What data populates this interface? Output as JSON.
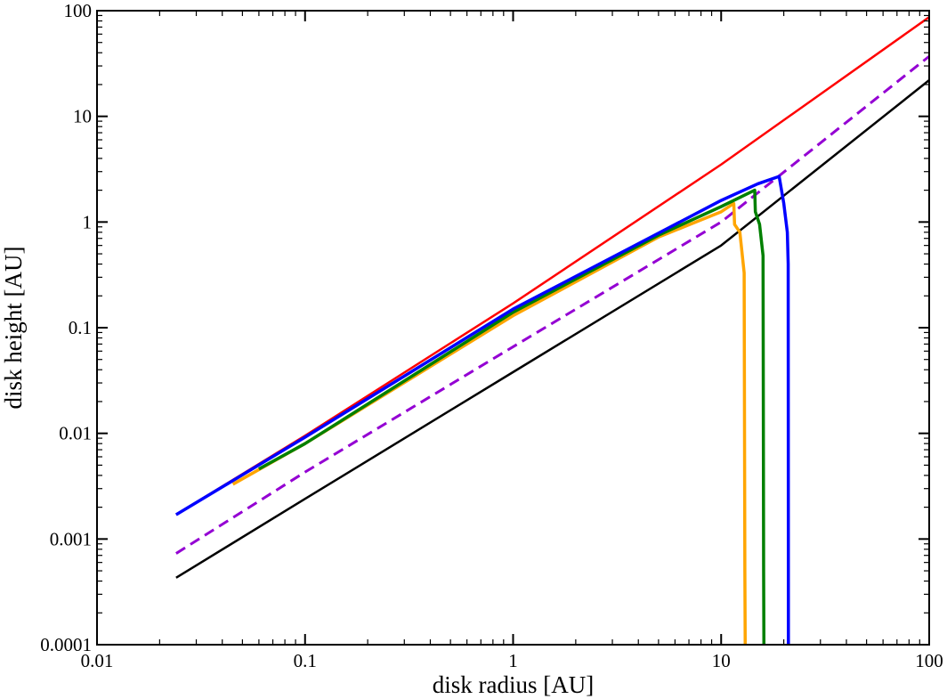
{
  "chart_data": {
    "type": "line",
    "xlabel": "disk radius [AU]",
    "ylabel": "disk height [AU]",
    "xscale": "log",
    "yscale": "log",
    "xlim": [
      0.01,
      100
    ],
    "ylim": [
      0.0001,
      100
    ],
    "x_tick_values": [
      0.01,
      0.1,
      1,
      10,
      100
    ],
    "x_tick_labels": [
      "0.01",
      "0.1",
      "1",
      "10",
      "100"
    ],
    "y_tick_values": [
      0.0001,
      0.001,
      0.01,
      0.1,
      1,
      10,
      100
    ],
    "y_tick_labels": [
      "0.0001",
      "0.001",
      "0.01",
      "0.1",
      "1",
      "10",
      "100"
    ],
    "grid": false,
    "legend": "none",
    "series": [
      {
        "color": "#ff0000",
        "style": "solid",
        "x": [
          0.024,
          0.1,
          1,
          10,
          100
        ],
        "y": [
          0.0017,
          0.0095,
          0.17,
          3.5,
          87
        ]
      },
      {
        "color": "#9400d3",
        "style": "dashed",
        "x": [
          0.024,
          0.1,
          1,
          10,
          100
        ],
        "y": [
          0.00073,
          0.0043,
          0.066,
          1.0,
          37
        ]
      },
      {
        "color": "#000000",
        "style": "solid",
        "x": [
          0.024,
          0.1,
          1,
          10,
          100
        ],
        "y": [
          0.00043,
          0.0024,
          0.038,
          0.6,
          22
        ]
      },
      {
        "color": "#ffa500",
        "style": "solid",
        "x": [
          0.045,
          0.1,
          1,
          5,
          10,
          11.5,
          11.6,
          12.3,
          12.9,
          13.0,
          13.05
        ],
        "y": [
          0.0033,
          0.008,
          0.13,
          0.72,
          1.25,
          1.5,
          0.95,
          0.8,
          0.33,
          0.0005,
          0.0001
        ]
      },
      {
        "color": "#008000",
        "style": "solid",
        "x": [
          0.06,
          0.1,
          1,
          5,
          10,
          14.5,
          14.6,
          15.3,
          15.9,
          16.0,
          16.05
        ],
        "y": [
          0.0046,
          0.008,
          0.14,
          0.75,
          1.4,
          2.0,
          1.25,
          0.95,
          0.48,
          0.0005,
          0.0001
        ]
      },
      {
        "color": "#0000ff",
        "style": "solid",
        "x": [
          0.024,
          0.1,
          1,
          10,
          15,
          19,
          20,
          20.8,
          21.0,
          21.05
        ],
        "y": [
          0.0017,
          0.0092,
          0.15,
          1.6,
          2.3,
          2.7,
          1.5,
          0.8,
          0.4,
          0.0001
        ]
      }
    ]
  }
}
